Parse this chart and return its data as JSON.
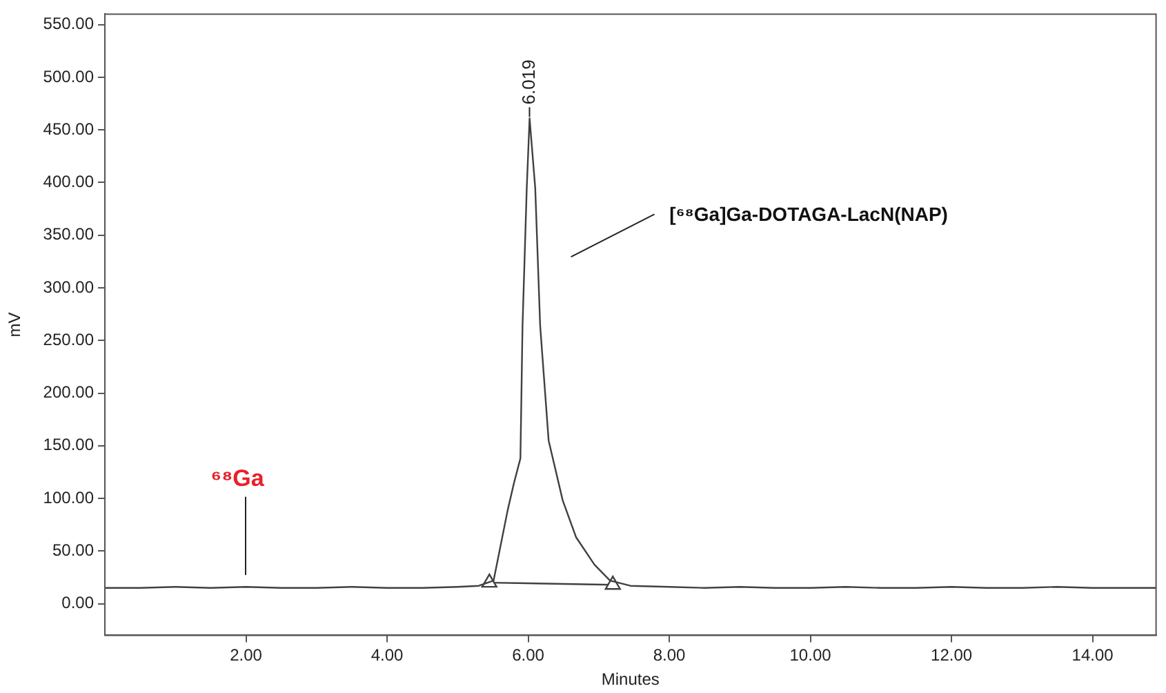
{
  "chart_data": {
    "type": "line",
    "xlabel": "Minutes",
    "ylabel": "mV",
    "xlim": [
      0,
      14.9
    ],
    "xticks": [
      {
        "value": 2,
        "label": "2.00"
      },
      {
        "value": 4,
        "label": "4.00"
      },
      {
        "value": 6,
        "label": "6.00"
      },
      {
        "value": 8,
        "label": "8.00"
      },
      {
        "value": 10,
        "label": "10.00"
      },
      {
        "value": 12,
        "label": "12.00"
      },
      {
        "value": 14,
        "label": "14.00"
      }
    ],
    "ylim": [
      -30,
      560
    ],
    "yticks": [
      {
        "value": 0,
        "label": "0.00"
      },
      {
        "value": 50,
        "label": "50.00"
      },
      {
        "value": 100,
        "label": "100.00"
      },
      {
        "value": 150,
        "label": "150.00"
      },
      {
        "value": 200,
        "label": "200.00"
      },
      {
        "value": 250,
        "label": "250.00"
      },
      {
        "value": 300,
        "label": "300.00"
      },
      {
        "value": 350,
        "label": "350.00"
      },
      {
        "value": 400,
        "label": "400.00"
      },
      {
        "value": 450,
        "label": "450.00"
      },
      {
        "value": 500,
        "label": "500.00"
      },
      {
        "value": 550,
        "label": "550.00"
      }
    ],
    "grid": false,
    "legend": false,
    "line_style": "solid",
    "series": [
      {
        "color": "#404040",
        "marker": "none",
        "x": [
          0,
          0.5,
          1,
          1.5,
          2,
          2.5,
          3,
          3.5,
          4,
          4.5,
          5,
          5.3,
          5.51,
          5.71,
          5.8,
          5.89,
          5.92,
          5.98,
          6.02,
          6.1,
          6.17,
          6.29,
          6.49,
          6.68,
          6.94,
          7.16,
          7.45,
          8,
          8.5,
          9,
          9.5,
          10,
          10.5,
          11,
          11.5,
          12,
          12.5,
          13,
          13.5,
          14,
          14.5,
          14.9
        ],
        "values": [
          15,
          15,
          16,
          15,
          16,
          15,
          15,
          16,
          15,
          15,
          16,
          17,
          22,
          89,
          115,
          138,
          264,
          395,
          461,
          395,
          264,
          155,
          98,
          63,
          37,
          22,
          17,
          16,
          15,
          16,
          15,
          15,
          16,
          15,
          15,
          16,
          15,
          15,
          16,
          15,
          15,
          15
        ]
      },
      {
        "color": "#404040",
        "marker": "triangle",
        "x": [
          5.45,
          7.2
        ],
        "values": [
          20,
          18
        ]
      }
    ],
    "annotations": [
      {
        "text": "6.019",
        "x": 6.019,
        "y": 461
      },
      "[⁶⁸Ga]Ga-DOTAGA-LacN(NAP)",
      "⁶⁸Ga"
    ]
  }
}
